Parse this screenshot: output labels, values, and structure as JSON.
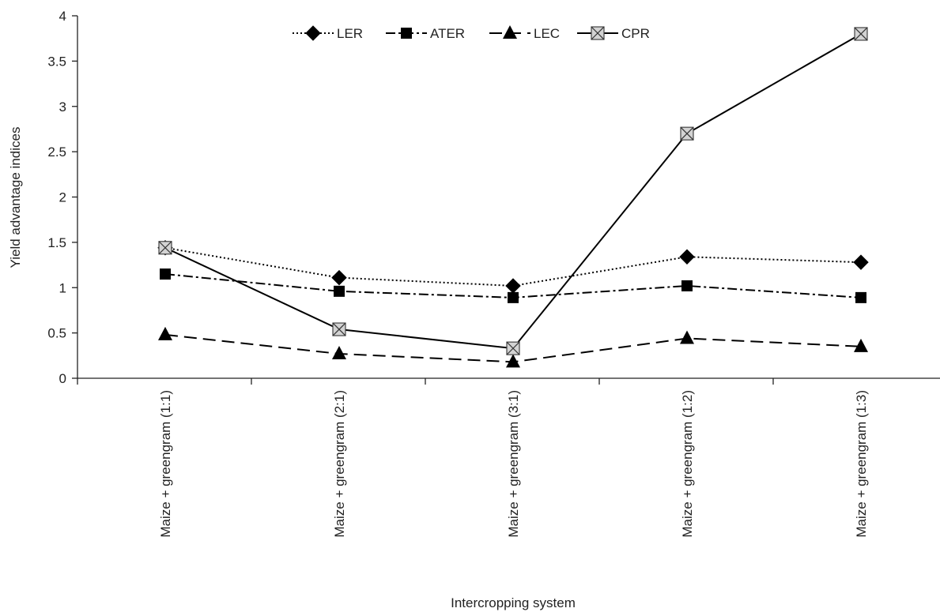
{
  "chart_data": {
    "type": "line",
    "title": "",
    "xlabel": "Intercropping system",
    "ylabel": "Yield advantage indices",
    "categories": [
      "Maize + greengram (1:1)",
      "Maize + greengram (2:1)",
      "Maize + greengram (3:1)",
      "Maize + greengram (1:2)",
      "Maize + greengram (1:3)"
    ],
    "ylim": [
      0,
      4
    ],
    "yticks": [
      "0",
      "0.5",
      "1",
      "1.5",
      "2",
      "2.5",
      "3",
      "3.5",
      "4"
    ],
    "grid": false,
    "legend_position": "top-center",
    "series": [
      {
        "name": "LER",
        "values": [
          1.44,
          1.11,
          1.02,
          1.34,
          1.28
        ],
        "marker": "diamond",
        "line_style": "dotted",
        "color": "#000000"
      },
      {
        "name": "ATER",
        "values": [
          1.15,
          0.96,
          0.89,
          1.02,
          0.89
        ],
        "marker": "square",
        "line_style": "dash-dot",
        "color": "#000000"
      },
      {
        "name": "LEC",
        "values": [
          0.48,
          0.27,
          0.18,
          0.44,
          0.35
        ],
        "marker": "triangle",
        "line_style": "dashed",
        "color": "#000000"
      },
      {
        "name": "CPR",
        "values": [
          1.44,
          0.54,
          0.33,
          2.7,
          3.8
        ],
        "marker": "x-box",
        "line_style": "solid",
        "color": "#000000",
        "marker_fill": "#d3d3d3"
      }
    ]
  }
}
